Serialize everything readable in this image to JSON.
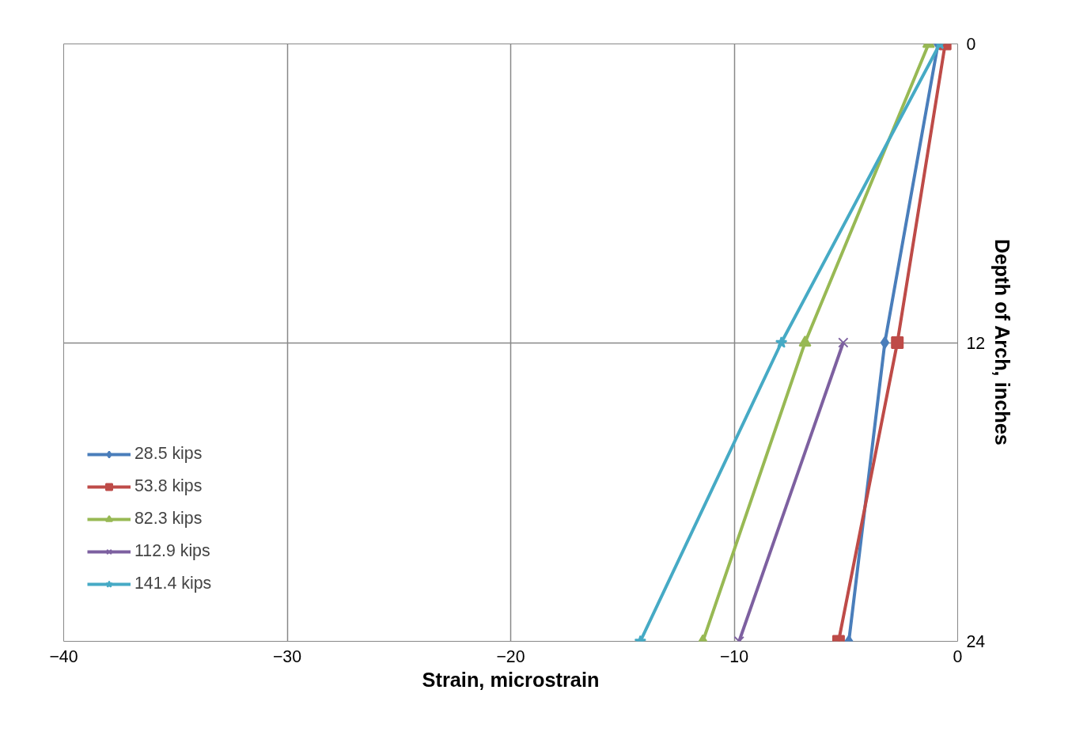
{
  "chart_data": {
    "type": "line",
    "xlabel": "Strain, microstrain",
    "ylabel": "Depth of Arch, inches",
    "xlim": [
      -40,
      0
    ],
    "xticks": [
      -40,
      -30,
      -20,
      -10,
      0
    ],
    "ylim": [
      24,
      0
    ],
    "yticks": [
      0,
      12,
      24
    ],
    "grid": true,
    "legend": "left",
    "line_style": "solid",
    "series": [
      {
        "name": "28.5 kips",
        "color": "#4a7ebb",
        "marker": "diamond",
        "x": [
          -0.88,
          -3.26,
          -4.87
        ],
        "values": [
          0,
          12,
          24
        ]
      },
      {
        "name": "53.8 kips",
        "color": "#be4b48",
        "marker": "square",
        "x": [
          -0.56,
          -2.7,
          -5.33
        ],
        "values": [
          0,
          12,
          24
        ]
      },
      {
        "name": "82.3 kips",
        "color": "#98b954",
        "marker": "triangle",
        "x": [
          -1.3,
          -6.83,
          -11.4
        ],
        "values": [
          0,
          12,
          24
        ]
      },
      {
        "name": "112.9 kips",
        "color": "#7d60a0",
        "marker": "cross",
        "x": [
          null,
          -5.12,
          -9.78
        ],
        "values": [
          null,
          12,
          24
        ]
      },
      {
        "name": "141.4 kips",
        "color": "#46aac5",
        "marker": "star",
        "x": [
          -0.8,
          -7.89,
          -14.2
        ],
        "values": [
          0,
          12,
          24
        ]
      }
    ]
  }
}
